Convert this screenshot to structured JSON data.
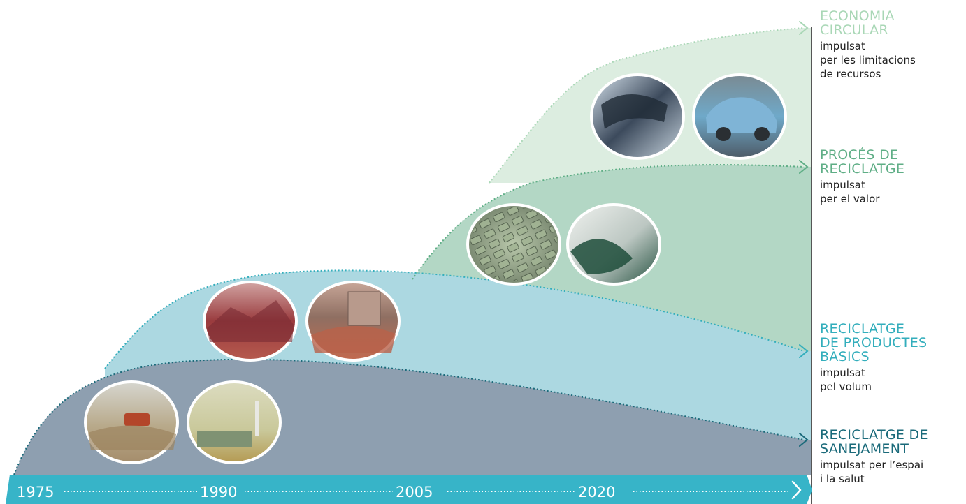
{
  "timeline": {
    "ticks": [
      "1975",
      "1990",
      "2005",
      "2020"
    ],
    "bar_color": "#37b4c8"
  },
  "stages": [
    {
      "id": "economia-circular",
      "title": "ECONOMIA\nCIRCULAR",
      "description": "impulsat\nper les limitacions\nde recursos",
      "color": "#a9d7b6",
      "fill": "#dcede0",
      "photos": [
        "phone-disassembly-photo",
        "shared-car-photo"
      ]
    },
    {
      "id": "proces-de-reciclatge",
      "title": "PROCÉS DE\nRECICLATGE",
      "description": "impulsat\nper el valor",
      "color": "#5fae86",
      "fill": "#b3d7c5",
      "photos": [
        "plastic-pellets-photo",
        "ground-powder-photo"
      ]
    },
    {
      "id": "reciclatge-de-productes-basics",
      "title": "RECICLATGE\nDE PRODUCTES\nBÀSICS",
      "description": "impulsat\npel volum",
      "color": "#33aebc",
      "fill": "#acd8e1",
      "photos": [
        "scrap-metal-pile-photo",
        "demolition-rubble-photo"
      ]
    },
    {
      "id": "reciclatge-de-sanejament",
      "title": "RECICLATGE DE\nSANEJAMENT",
      "description": "impulsat per l’espai\ni la salut",
      "color": "#1a6a7a",
      "fill": "#8e9fb0",
      "photos": [
        "landfill-bulldozer-photo",
        "incinerator-plant-photo"
      ]
    }
  ]
}
